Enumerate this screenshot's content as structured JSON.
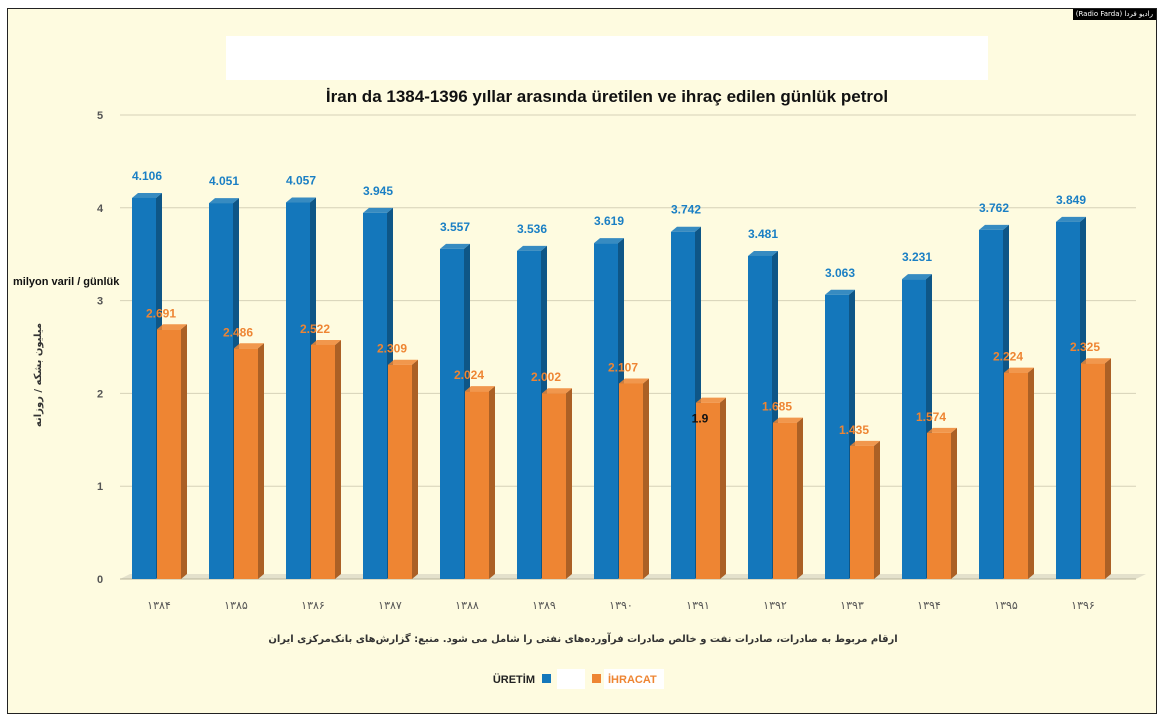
{
  "watermark": "(Radio Farda) رادیو فردا",
  "chart_data": {
    "type": "bar",
    "title": "İran da 1384-1396 yıllar arasında üretilen ve ihraç edilen günlük petrol",
    "ylabel": "milyon varil / günlük",
    "ylabel_fa": "میلیون بشکه / روزانه",
    "ylim": [
      0,
      5
    ],
    "yticks": [
      "0",
      "1",
      "2",
      "3",
      "4",
      "5"
    ],
    "categories": [
      "۱۳۸۴",
      "۱۳۸۵",
      "۱۳۸۶",
      "۱۳۸۷",
      "۱۳۸۸",
      "۱۳۸۹",
      "۱۳۹۰",
      "۱۳۹۱",
      "۱۳۹۲",
      "۱۳۹۳",
      "۱۳۹۴",
      "۱۳۹۵",
      "۱۳۹۶"
    ],
    "series": [
      {
        "name": "ÜRETİM",
        "color": "#1477bb",
        "label_color": "#1a7fc4",
        "values": [
          4.106,
          4.051,
          4.057,
          3.945,
          3.557,
          3.536,
          3.619,
          3.742,
          3.481,
          3.063,
          3.231,
          3.762,
          3.849
        ],
        "labels": [
          "4.106",
          "4.051",
          "4.057",
          "3.945",
          "3.557",
          "3.536",
          "3.619",
          "3.742",
          "3.481",
          "3.063",
          "3.231",
          "3.762",
          "3.849"
        ]
      },
      {
        "name": "İHRACAT",
        "color": "#ee8533",
        "label_color": "#ee8533",
        "values": [
          2.691,
          2.486,
          2.522,
          2.309,
          2.024,
          2.002,
          2.107,
          1.9,
          1.685,
          1.435,
          1.574,
          2.224,
          2.325
        ],
        "labels": [
          "2.691",
          "2.486",
          "2.522",
          "2.309",
          "2.024",
          "2.002",
          "2.107",
          "1.9",
          "1.685",
          "1.435",
          "1.574",
          "2.224",
          "2.325"
        ]
      }
    ],
    "grid": true,
    "legend": "bottom-center",
    "note": "ارقام مربوط به صادرات، صادرات نفت و خالص صادرات فرآورده‌های نفتی را شامل می شود. منبع: گزارش‌های بانک‌مرکزی ایران"
  }
}
